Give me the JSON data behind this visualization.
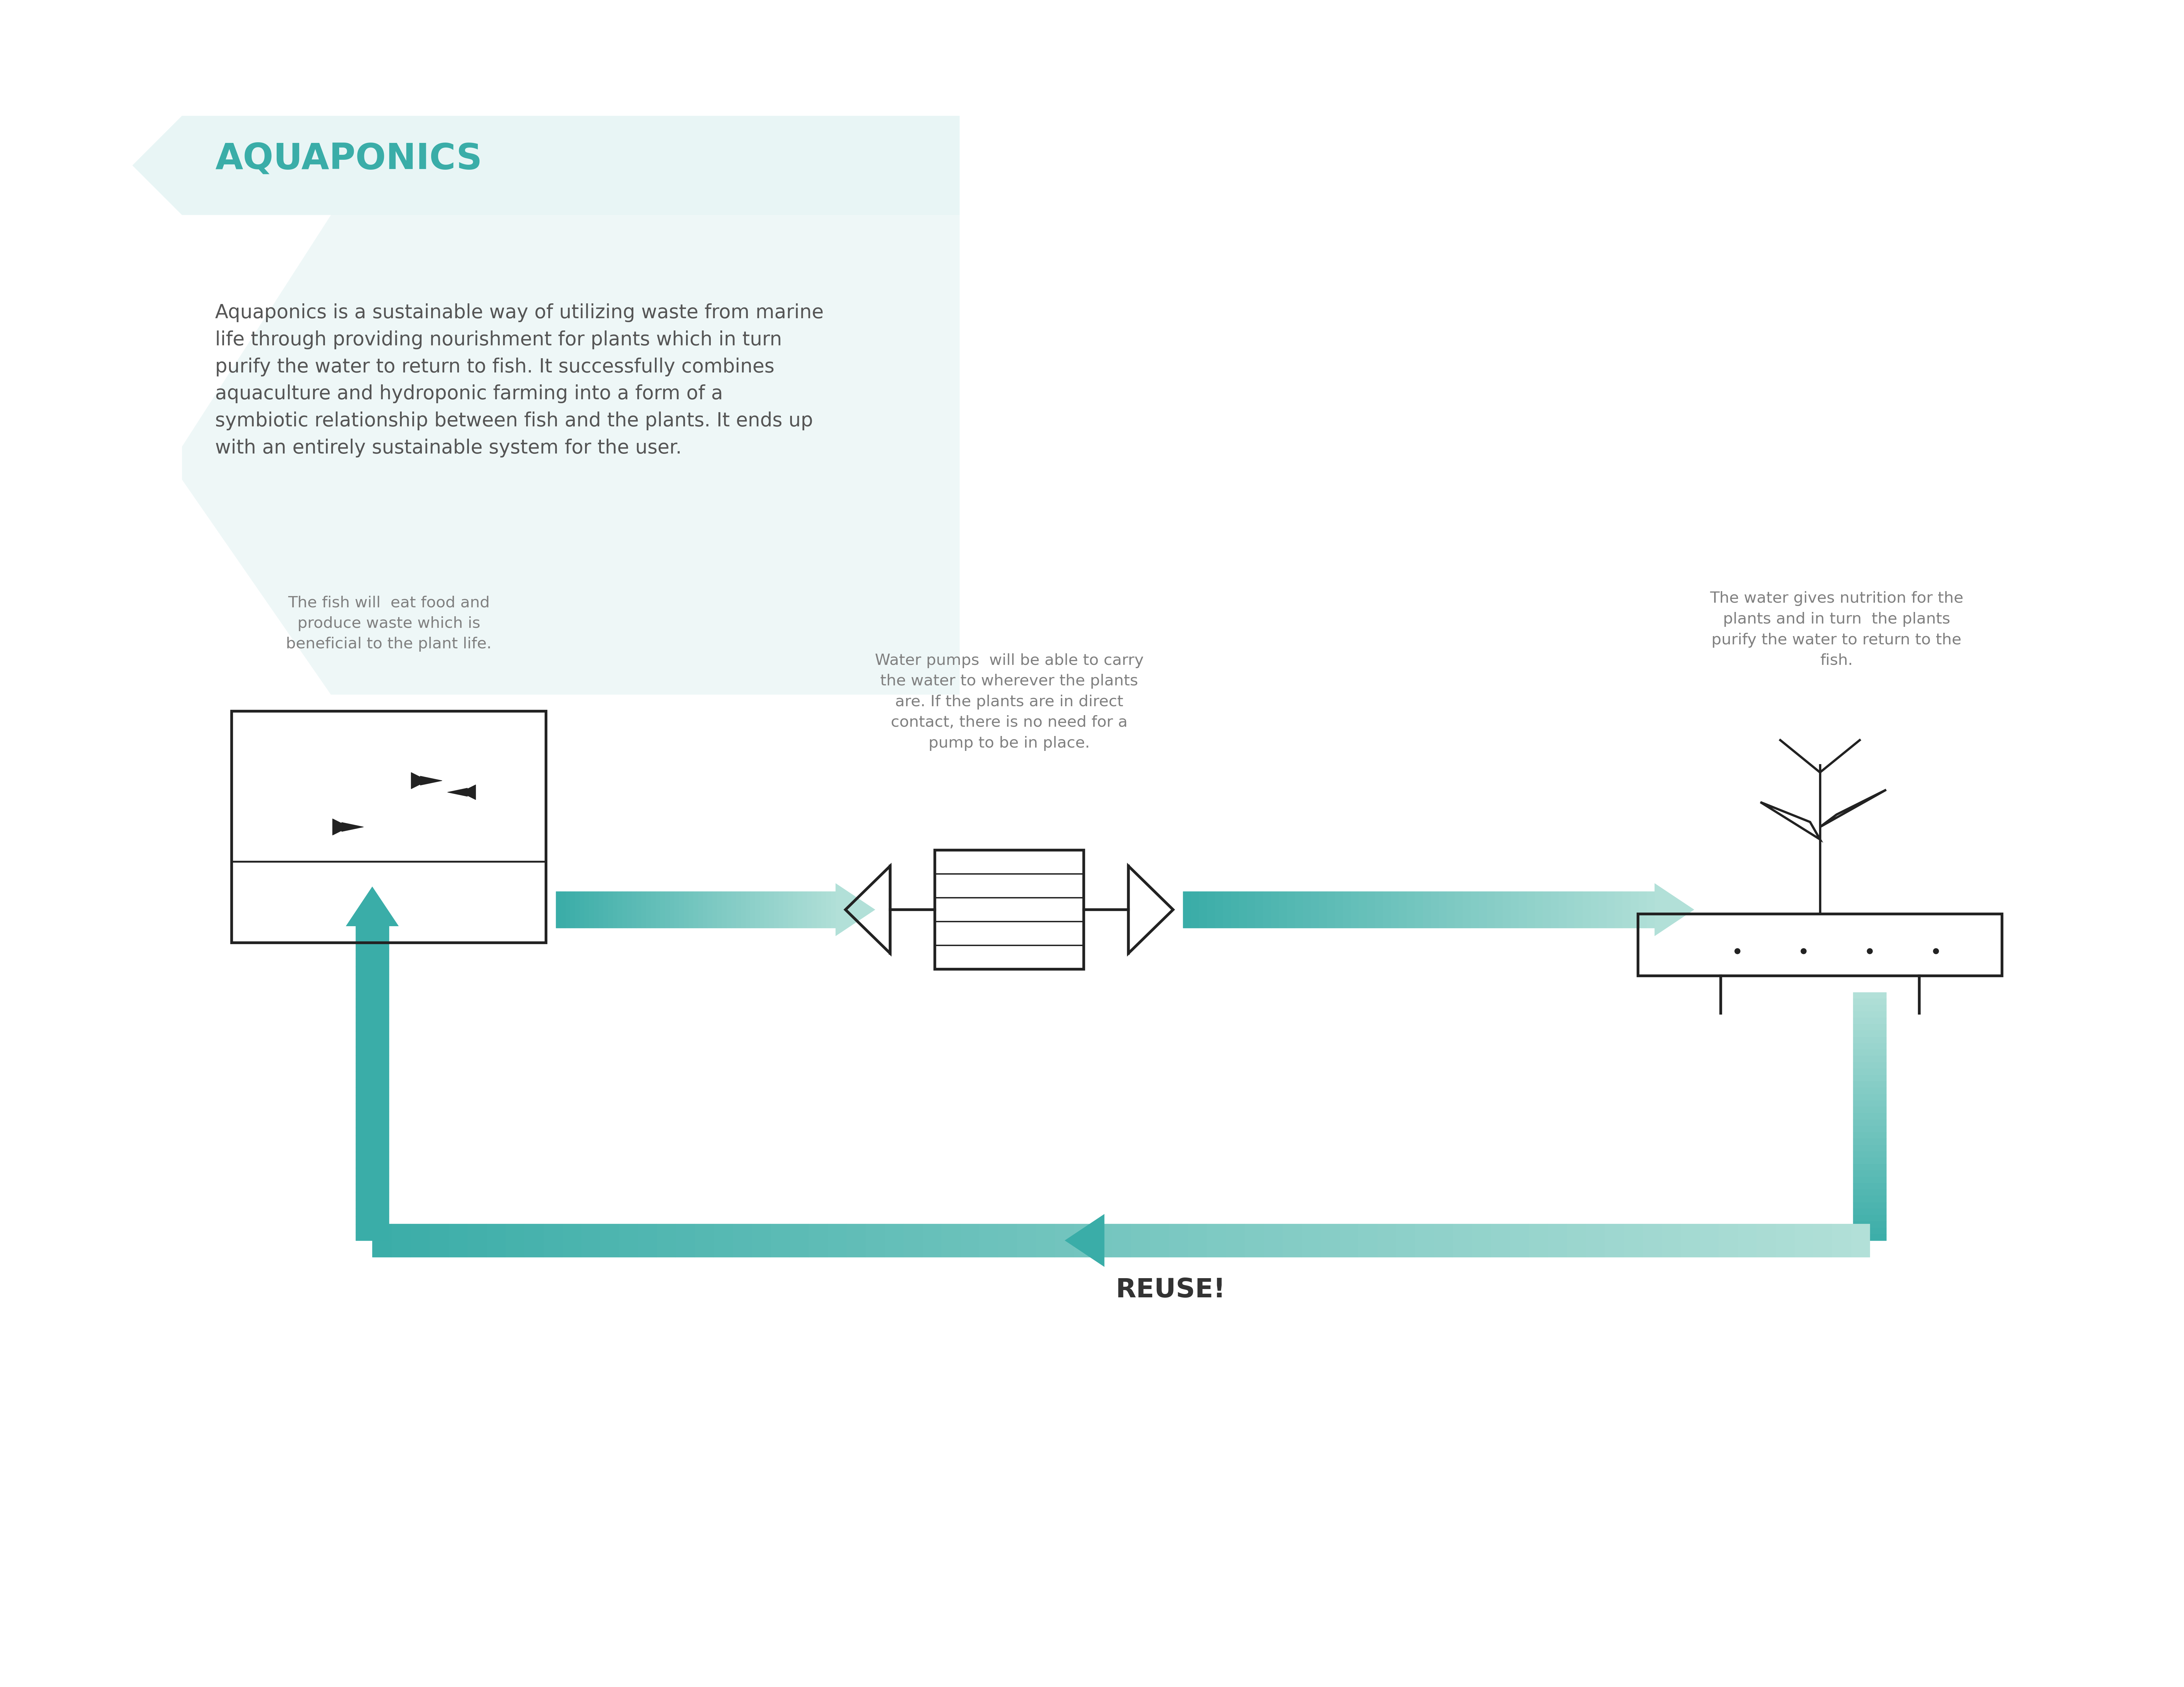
{
  "bg_color": "#ffffff",
  "teal": "#3aada8",
  "teal_light": "#e8f5f5",
  "teal_mid": "#5bbdb8",
  "gray_text": "#808080",
  "dark_text": "#555555",
  "title": "AQUAPONICS",
  "description": "Aquaponics is a sustainable way of utilizing waste from marine\nlife through providing nourishment for plants which in turn\npurify the water to return to fish. It successfully combines\naquaculture and hydroponic farming into a form of a\nsymbiotic relationship between fish and the plants. It ends up\nwith an entirely sustainable system for the user.",
  "fish_caption": "The fish will  eat food and\nproduce waste which is\nbeneficial to the plant life.",
  "pump_caption": "Water pumps  will be able to carry\nthe water to wherever the plants\nare. If the plants are in direct\ncontact, there is no need for a\npump to be in place.",
  "plant_caption": "The water gives nutrition for the\nplants and in turn  the plants\npurify the water to return to the\nfish.",
  "reuse_label": "REUSE!"
}
